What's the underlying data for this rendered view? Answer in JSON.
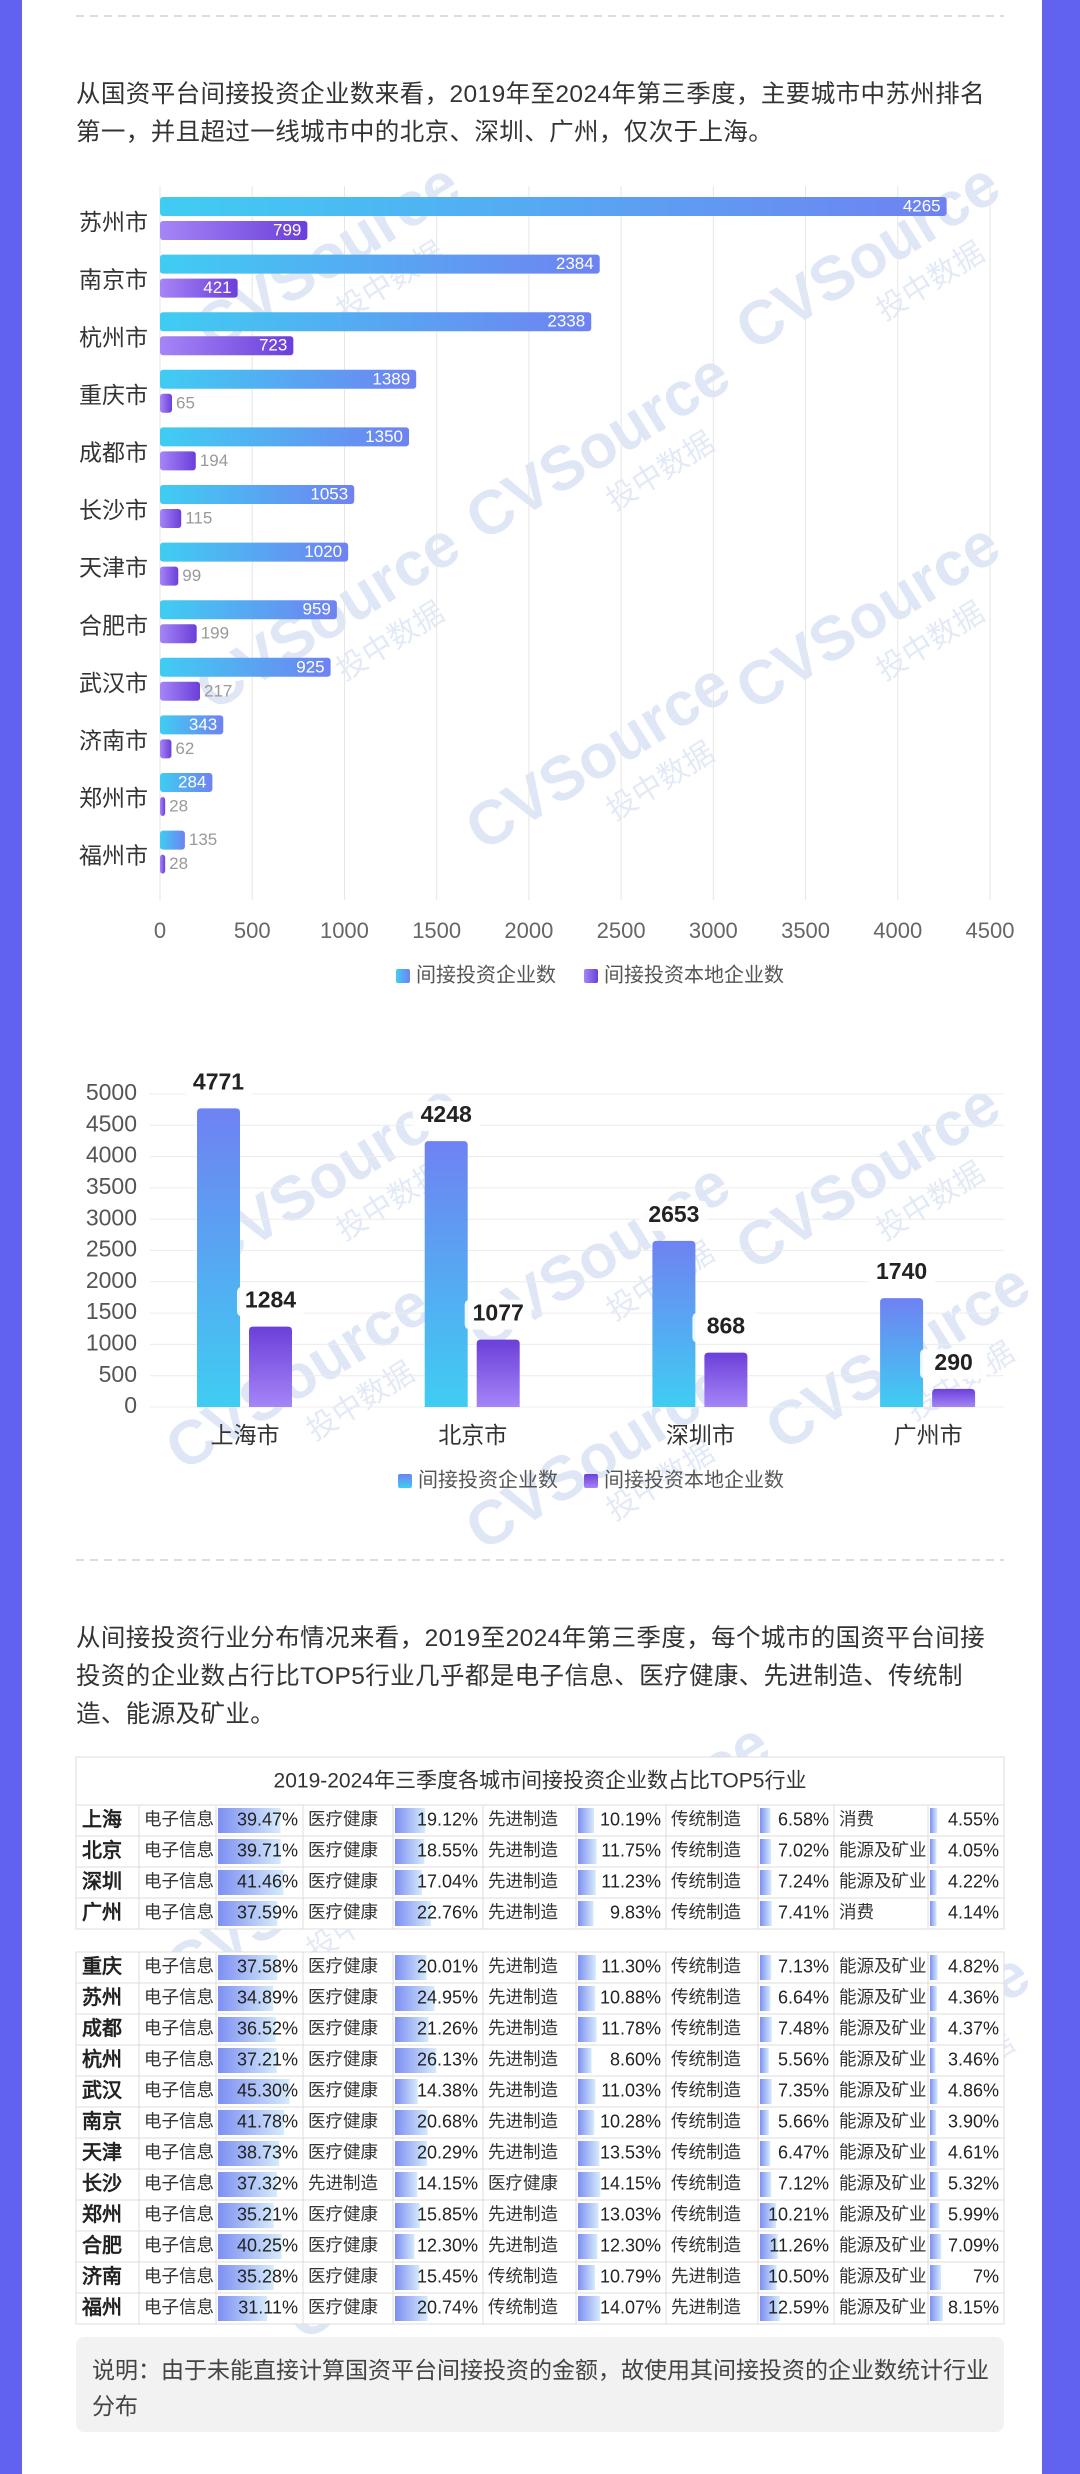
{
  "paragraphs": [
    "从国资平台间接投资企业数来看，2019年至2024年第三季度，主要城市中苏州排名第一，并且超过一线城市中的北京、深圳、广州，仅次于上海。",
    "从间接投资行业分布情况来看，2019至2024年第三季度，每个城市的国资平台间接投资的企业数占行比TOP5行业几乎都是电子信息、医疗健康、先进制造、传统制造、能源及矿业。"
  ],
  "watermark": [
    "CVSource",
    "投中数据"
  ],
  "chart_data": [
    {
      "type": "bar",
      "orientation": "horizontal",
      "categories": [
        "苏州市",
        "南京市",
        "杭州市",
        "重庆市",
        "成都市",
        "长沙市",
        "天津市",
        "合肥市",
        "武汉市",
        "济南市",
        "郑州市",
        "福州市"
      ],
      "series": [
        {
          "name": "间接投资企业数",
          "color": "#6f82f2",
          "values": [
            4265,
            2384,
            2338,
            1389,
            1350,
            1053,
            1020,
            959,
            925,
            343,
            284,
            135
          ]
        },
        {
          "name": "间接投资本地企业数",
          "color": "#6b3fd9",
          "values": [
            799,
            421,
            723,
            65,
            194,
            115,
            99,
            199,
            217,
            62,
            28,
            28
          ]
        }
      ],
      "xlim": [
        0,
        4500
      ],
      "xticks": [
        0,
        500,
        1000,
        1500,
        2000,
        2500,
        3000,
        3500,
        4000,
        4500
      ],
      "grid": true,
      "legend": "bottom"
    },
    {
      "type": "bar",
      "categories": [
        "上海市",
        "北京市",
        "深圳市",
        "广州市"
      ],
      "series": [
        {
          "name": "间接投资企业数",
          "color": "#6f82f2",
          "values": [
            4771,
            4248,
            2653,
            1740
          ]
        },
        {
          "name": "间接投资本地企业数",
          "color": "#6b3fd9",
          "values": [
            1284,
            1077,
            868,
            290
          ]
        }
      ],
      "ylim": [
        0,
        5000
      ],
      "yticks": [
        0,
        500,
        1000,
        1500,
        2000,
        2500,
        3000,
        3500,
        4000,
        4500,
        5000
      ],
      "grid": true,
      "legend": "bottom"
    }
  ],
  "table": {
    "title": "2019-2024年三季度各城市间接投资企业数占比TOP5行业",
    "groups": [
      [
        {
          "city": "上海",
          "items": [
            {
              "industry": "电子信息",
              "share": 39.47,
              "label": "39.47%"
            },
            {
              "industry": "医疗健康",
              "share": 19.12,
              "label": "19.12%"
            },
            {
              "industry": "先进制造",
              "share": 10.19,
              "label": "10.19%"
            },
            {
              "industry": "传统制造",
              "share": 6.58,
              "label": "6.58%"
            },
            {
              "industry": "消费",
              "share": 4.55,
              "label": "4.55%"
            }
          ]
        },
        {
          "city": "北京",
          "items": [
            {
              "industry": "电子信息",
              "share": 39.71,
              "label": "39.71%"
            },
            {
              "industry": "医疗健康",
              "share": 18.55,
              "label": "18.55%"
            },
            {
              "industry": "先进制造",
              "share": 11.75,
              "label": "11.75%"
            },
            {
              "industry": "传统制造",
              "share": 7.02,
              "label": "7.02%"
            },
            {
              "industry": "能源及矿业",
              "share": 4.05,
              "label": "4.05%"
            }
          ]
        },
        {
          "city": "深圳",
          "items": [
            {
              "industry": "电子信息",
              "share": 41.46,
              "label": "41.46%"
            },
            {
              "industry": "医疗健康",
              "share": 17.04,
              "label": "17.04%"
            },
            {
              "industry": "先进制造",
              "share": 11.23,
              "label": "11.23%"
            },
            {
              "industry": "传统制造",
              "share": 7.24,
              "label": "7.24%"
            },
            {
              "industry": "能源及矿业",
              "share": 4.22,
              "label": "4.22%"
            }
          ]
        },
        {
          "city": "广州",
          "items": [
            {
              "industry": "电子信息",
              "share": 37.59,
              "label": "37.59%"
            },
            {
              "industry": "医疗健康",
              "share": 22.76,
              "label": "22.76%"
            },
            {
              "industry": "先进制造",
              "share": 9.83,
              "label": "9.83%"
            },
            {
              "industry": "传统制造",
              "share": 7.41,
              "label": "7.41%"
            },
            {
              "industry": "消费",
              "share": 4.14,
              "label": "4.14%"
            }
          ]
        }
      ],
      [
        {
          "city": "重庆",
          "items": [
            {
              "industry": "电子信息",
              "share": 37.58,
              "label": "37.58%"
            },
            {
              "industry": "医疗健康",
              "share": 20.01,
              "label": "20.01%"
            },
            {
              "industry": "先进制造",
              "share": 11.3,
              "label": "11.30%"
            },
            {
              "industry": "传统制造",
              "share": 7.13,
              "label": "7.13%"
            },
            {
              "industry": "能源及矿业",
              "share": 4.82,
              "label": "4.82%"
            }
          ]
        },
        {
          "city": "苏州",
          "items": [
            {
              "industry": "电子信息",
              "share": 34.89,
              "label": "34.89%"
            },
            {
              "industry": "医疗健康",
              "share": 24.95,
              "label": "24.95%"
            },
            {
              "industry": "先进制造",
              "share": 10.88,
              "label": "10.88%"
            },
            {
              "industry": "传统制造",
              "share": 6.64,
              "label": "6.64%"
            },
            {
              "industry": "能源及矿业",
              "share": 4.36,
              "label": "4.36%"
            }
          ]
        },
        {
          "city": "成都",
          "items": [
            {
              "industry": "电子信息",
              "share": 36.52,
              "label": "36.52%"
            },
            {
              "industry": "医疗健康",
              "share": 21.26,
              "label": "21.26%"
            },
            {
              "industry": "先进制造",
              "share": 11.78,
              "label": "11.78%"
            },
            {
              "industry": "传统制造",
              "share": 7.48,
              "label": "7.48%"
            },
            {
              "industry": "能源及矿业",
              "share": 4.37,
              "label": "4.37%"
            }
          ]
        },
        {
          "city": "杭州",
          "items": [
            {
              "industry": "电子信息",
              "share": 37.21,
              "label": "37.21%"
            },
            {
              "industry": "医疗健康",
              "share": 26.13,
              "label": "26.13%"
            },
            {
              "industry": "先进制造",
              "share": 8.6,
              "label": "8.60%"
            },
            {
              "industry": "传统制造",
              "share": 5.56,
              "label": "5.56%"
            },
            {
              "industry": "能源及矿业",
              "share": 3.46,
              "label": "3.46%"
            }
          ]
        },
        {
          "city": "武汉",
          "items": [
            {
              "industry": "电子信息",
              "share": 45.3,
              "label": "45.30%"
            },
            {
              "industry": "医疗健康",
              "share": 14.38,
              "label": "14.38%"
            },
            {
              "industry": "先进制造",
              "share": 11.03,
              "label": "11.03%"
            },
            {
              "industry": "传统制造",
              "share": 7.35,
              "label": "7.35%"
            },
            {
              "industry": "能源及矿业",
              "share": 4.86,
              "label": "4.86%"
            }
          ]
        },
        {
          "city": "南京",
          "items": [
            {
              "industry": "电子信息",
              "share": 41.78,
              "label": "41.78%"
            },
            {
              "industry": "医疗健康",
              "share": 20.68,
              "label": "20.68%"
            },
            {
              "industry": "先进制造",
              "share": 10.28,
              "label": "10.28%"
            },
            {
              "industry": "传统制造",
              "share": 5.66,
              "label": "5.66%"
            },
            {
              "industry": "能源及矿业",
              "share": 3.9,
              "label": "3.90%"
            }
          ]
        },
        {
          "city": "天津",
          "items": [
            {
              "industry": "电子信息",
              "share": 38.73,
              "label": "38.73%"
            },
            {
              "industry": "医疗健康",
              "share": 20.29,
              "label": "20.29%"
            },
            {
              "industry": "先进制造",
              "share": 13.53,
              "label": "13.53%"
            },
            {
              "industry": "传统制造",
              "share": 6.47,
              "label": "6.47%"
            },
            {
              "industry": "能源及矿业",
              "share": 4.61,
              "label": "4.61%"
            }
          ]
        },
        {
          "city": "长沙",
          "items": [
            {
              "industry": "电子信息",
              "share": 37.32,
              "label": "37.32%"
            },
            {
              "industry": "先进制造",
              "share": 14.15,
              "label": "14.15%"
            },
            {
              "industry": "医疗健康",
              "share": 14.15,
              "label": "14.15%"
            },
            {
              "industry": "传统制造",
              "share": 7.12,
              "label": "7.12%"
            },
            {
              "industry": "能源及矿业",
              "share": 5.32,
              "label": "5.32%"
            }
          ]
        },
        {
          "city": "郑州",
          "items": [
            {
              "industry": "电子信息",
              "share": 35.21,
              "label": "35.21%"
            },
            {
              "industry": "医疗健康",
              "share": 15.85,
              "label": "15.85%"
            },
            {
              "industry": "先进制造",
              "share": 13.03,
              "label": "13.03%"
            },
            {
              "industry": "传统制造",
              "share": 10.21,
              "label": "10.21%"
            },
            {
              "industry": "能源及矿业",
              "share": 5.99,
              "label": "5.99%"
            }
          ]
        },
        {
          "city": "合肥",
          "items": [
            {
              "industry": "电子信息",
              "share": 40.25,
              "label": "40.25%"
            },
            {
              "industry": "医疗健康",
              "share": 12.3,
              "label": "12.30%"
            },
            {
              "industry": "先进制造",
              "share": 12.3,
              "label": "12.30%"
            },
            {
              "industry": "传统制造",
              "share": 11.26,
              "label": "11.26%"
            },
            {
              "industry": "能源及矿业",
              "share": 7.09,
              "label": "7.09%"
            }
          ]
        },
        {
          "city": "济南",
          "items": [
            {
              "industry": "电子信息",
              "share": 35.28,
              "label": "35.28%"
            },
            {
              "industry": "医疗健康",
              "share": 15.45,
              "label": "15.45%"
            },
            {
              "industry": "传统制造",
              "share": 10.79,
              "label": "10.79%"
            },
            {
              "industry": "先进制造",
              "share": 10.5,
              "label": "10.50%"
            },
            {
              "industry": "能源及矿业",
              "share": 7,
              "label": "7%"
            }
          ]
        },
        {
          "city": "福州",
          "items": [
            {
              "industry": "电子信息",
              "share": 31.11,
              "label": "31.11%"
            },
            {
              "industry": "医疗健康",
              "share": 20.74,
              "label": "20.74%"
            },
            {
              "industry": "传统制造",
              "share": 14.07,
              "label": "14.07%"
            },
            {
              "industry": "先进制造",
              "share": 12.59,
              "label": "12.59%"
            },
            {
              "industry": "能源及矿业",
              "share": 8.15,
              "label": "8.15%"
            }
          ]
        }
      ]
    ]
  },
  "note": "说明：由于未能直接计算国资平台间接投资的金额，故使用其间接投资的企业数统计行业分布"
}
